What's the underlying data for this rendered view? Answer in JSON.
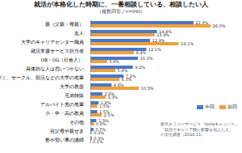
{
  "chart_data": {
    "type": "bar",
    "orientation": "horizontal",
    "title": "就活が本格化した時期に、一番相談している、相談したい人",
    "subtitle": "（複数回答／n=990）",
    "categories": [
      "親（父親・母親）",
      "友人",
      "大学のキャリアセンター職員",
      "就活支援サービス担当者",
      "OB・OG（社会人）",
      "具体的な人は思いつかない",
      "ゼミ、サークル、部活などの大学の先輩",
      "大学の教授",
      "兄弟姉妹",
      "アルバイト先の先輩",
      "小・中・高の教員",
      "その他",
      "祖父母や親せき",
      "塾や習い事の講師"
    ],
    "series": [
      {
        "name": "今回",
        "color": "#4a78c9",
        "values": [
          22.3,
          14.4,
          12.9,
          12.1,
          10.3,
          9.2,
          7.2,
          4.6,
          2.6,
          1.8,
          1.5,
          1.3,
          0.7,
          0.3
        ],
        "value_labels": [
          "22.3%",
          "14.4%",
          "12.9%",
          "12.1%",
          "10.3%",
          "9.2%",
          "7.2%",
          "4.6%",
          "2.6%",
          "1.8%",
          "1.5%",
          "1.3%",
          "0.7%",
          "0.3%"
        ]
      },
      {
        "name": "前回",
        "color": "#f2a03d",
        "values": [
          26.0,
          13.9,
          19.1,
          9.4,
          3.6,
          5.4,
          6.3,
          10.5,
          3.3,
          1.5,
          2.5,
          0.8,
          0.3,
          0.1
        ],
        "value_labels": [
          "26.0%",
          "13.9%",
          "19.1%",
          "9.4%",
          "3.6%",
          "5.4%",
          "6.3%",
          "10.5%",
          "3.3%",
          "1.5%",
          "2.5%",
          "0.8%",
          "0.3%",
          "0.1%"
        ]
      }
    ],
    "xlim": [
      0,
      30
    ],
    "tick_labels": "y",
    "data_labels": true,
    "legend": "bottom-right",
    "annotations": [
      "新卒オファーサービス「dodaキャンパス」",
      "「就活でキャリア観に影響を与えた人」",
      "の学生調査（2024.11）"
    ]
  }
}
